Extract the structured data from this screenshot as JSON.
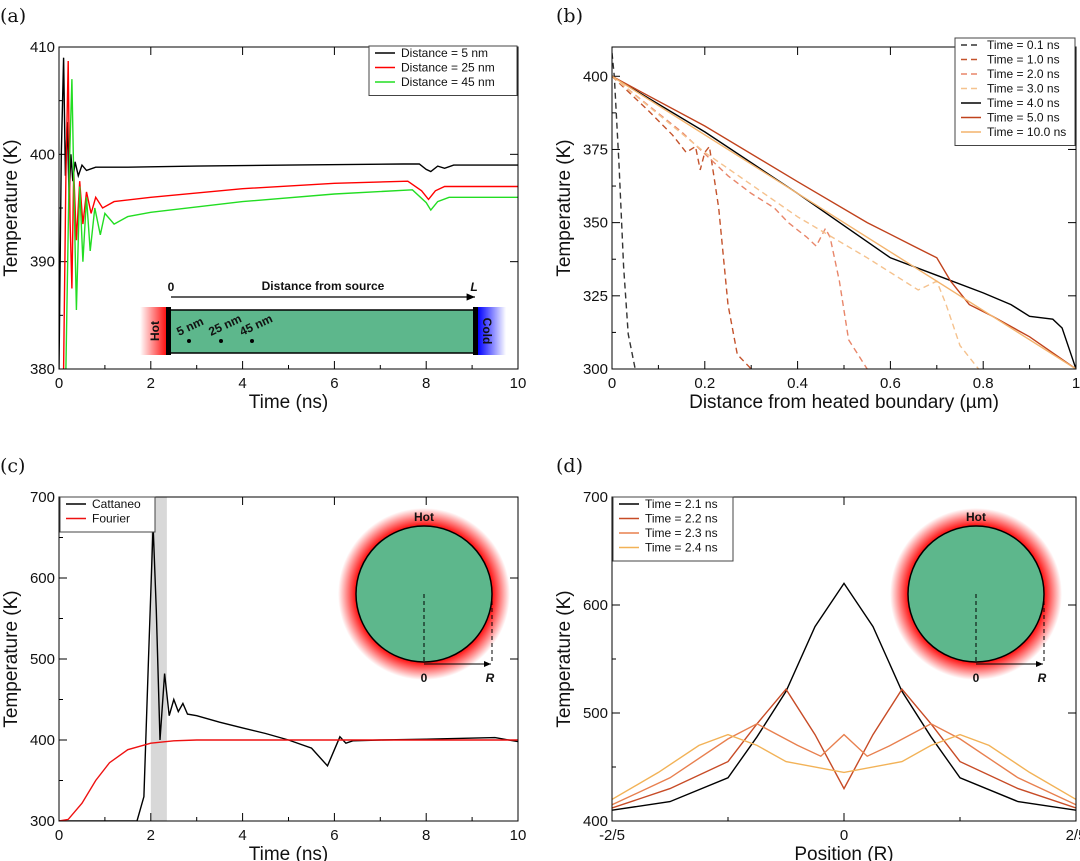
{
  "chart_data": [
    {
      "panel": "(a)",
      "type": "line",
      "xlabel": "Time (ns)",
      "ylabel": "Temperature (K)",
      "xlim": [
        0,
        10
      ],
      "ylim": [
        380,
        410
      ],
      "xticks": [
        0,
        2,
        4,
        6,
        8,
        10
      ],
      "yticks": [
        380,
        390,
        400,
        410
      ],
      "legend_position": "top-right",
      "series": [
        {
          "name": "Distance = 5 nm",
          "color": "#000000",
          "dash": false,
          "points": [
            [
              0,
              380
            ],
            [
              0.05,
              400
            ],
            [
              0.1,
              409
            ],
            [
              0.14,
              398
            ],
            [
              0.18,
              403
            ],
            [
              0.22,
              396
            ],
            [
              0.26,
              400
            ],
            [
              0.3,
              397.5
            ],
            [
              0.35,
              399.3
            ],
            [
              0.42,
              398
            ],
            [
              0.5,
              399
            ],
            [
              0.6,
              398.5
            ],
            [
              0.8,
              398.8
            ],
            [
              1.5,
              398.8
            ],
            [
              3,
              398.9
            ],
            [
              5,
              399
            ],
            [
              7.5,
              399.1
            ],
            [
              7.85,
              399.1
            ],
            [
              8.0,
              398.6
            ],
            [
              8.1,
              398.4
            ],
            [
              8.25,
              398.9
            ],
            [
              8.4,
              398.7
            ],
            [
              8.6,
              399.0
            ],
            [
              9,
              399
            ],
            [
              10,
              399
            ]
          ]
        },
        {
          "name": "Distance = 25 nm",
          "color": "#ff0000",
          "dash": false,
          "points": [
            [
              0.1,
              380
            ],
            [
              0.15,
              398
            ],
            [
              0.2,
              408.7
            ],
            [
              0.24,
              394
            ],
            [
              0.28,
              387.5
            ],
            [
              0.32,
              398.5
            ],
            [
              0.38,
              392
            ],
            [
              0.45,
              397.5
            ],
            [
              0.52,
              393.5
            ],
            [
              0.6,
              396.5
            ],
            [
              0.7,
              394.5
            ],
            [
              0.8,
              396
            ],
            [
              0.95,
              395
            ],
            [
              1.2,
              395.6
            ],
            [
              2,
              396
            ],
            [
              4,
              396.8
            ],
            [
              6,
              397.3
            ],
            [
              7.6,
              397.5
            ],
            [
              7.9,
              396.6
            ],
            [
              8.05,
              395.8
            ],
            [
              8.2,
              396.6
            ],
            [
              8.4,
              397
            ],
            [
              10,
              397
            ]
          ]
        },
        {
          "name": "Distance = 45 nm",
          "color": "#22dd22",
          "dash": false,
          "points": [
            [
              0.15,
              380
            ],
            [
              0.22,
              398
            ],
            [
              0.28,
              407
            ],
            [
              0.33,
              396
            ],
            [
              0.38,
              385.5
            ],
            [
              0.45,
              397
            ],
            [
              0.52,
              390
            ],
            [
              0.6,
              396
            ],
            [
              0.68,
              391
            ],
            [
              0.78,
              395
            ],
            [
              0.9,
              392.5
            ],
            [
              1.0,
              394.5
            ],
            [
              1.2,
              393.5
            ],
            [
              1.5,
              394.2
            ],
            [
              2,
              394.6
            ],
            [
              4,
              395.6
            ],
            [
              6,
              396.3
            ],
            [
              7.7,
              396.7
            ],
            [
              8.0,
              395.5
            ],
            [
              8.1,
              394.8
            ],
            [
              8.25,
              395.6
            ],
            [
              8.5,
              396
            ],
            [
              10,
              396
            ]
          ]
        }
      ],
      "inset": {
        "start_label": "0",
        "end_label": "L",
        "axis_label": "Distance from source",
        "hot_label": "Hot",
        "cold_label": "Cold",
        "probe_labels": [
          "5 nm",
          "25 nm",
          "45 nm"
        ]
      }
    },
    {
      "panel": "(b)",
      "type": "line",
      "xlabel": "Distance from heated boundary (µm)",
      "ylabel": "Temperature (K)",
      "xlim": [
        0,
        1
      ],
      "ylim": [
        300,
        410
      ],
      "xticks": [
        0,
        0.2,
        0.4,
        0.6,
        0.8,
        1
      ],
      "xticklabels": [
        "0",
        "0.2",
        "0.4",
        "0.6",
        "0.8",
        "1"
      ],
      "yticks": [
        300,
        325,
        350,
        375,
        400
      ],
      "legend_position": "top-right",
      "series": [
        {
          "name": "Time = 0.1 ns",
          "color": "#333333",
          "dash": true,
          "points": [
            [
              0,
              408
            ],
            [
              0.005,
              400
            ],
            [
              0.015,
              370
            ],
            [
              0.025,
              335
            ],
            [
              0.035,
              312
            ],
            [
              0.05,
              300
            ]
          ]
        },
        {
          "name": "Time = 1.0 ns",
          "color": "#c4532c",
          "dash": true,
          "points": [
            [
              0,
              400
            ],
            [
              0.08,
              388
            ],
            [
              0.13,
              380
            ],
            [
              0.16,
              374
            ],
            [
              0.18,
              376
            ],
            [
              0.19,
              368
            ],
            [
              0.2,
              374
            ],
            [
              0.21,
              376
            ],
            [
              0.23,
              355
            ],
            [
              0.25,
              322
            ],
            [
              0.27,
              305
            ],
            [
              0.3,
              300
            ]
          ]
        },
        {
          "name": "Time = 2.0 ns",
          "color": "#e8866a",
          "dash": true,
          "points": [
            [
              0,
              400
            ],
            [
              0.15,
              381
            ],
            [
              0.25,
              366
            ],
            [
              0.3,
              360
            ],
            [
              0.35,
              355
            ],
            [
              0.38,
              350
            ],
            [
              0.42,
              345
            ],
            [
              0.44,
              342
            ],
            [
              0.46,
              348
            ],
            [
              0.47,
              345
            ],
            [
              0.49,
              330
            ],
            [
              0.51,
              310
            ],
            [
              0.55,
              300
            ]
          ]
        },
        {
          "name": "Time = 3.0 ns",
          "color": "#f5c28e",
          "dash": true,
          "points": [
            [
              0,
              400
            ],
            [
              0.2,
              374
            ],
            [
              0.4,
              352
            ],
            [
              0.55,
              338
            ],
            [
              0.62,
              331
            ],
            [
              0.66,
              327
            ],
            [
              0.7,
              330
            ],
            [
              0.72,
              322
            ],
            [
              0.75,
              308
            ],
            [
              0.79,
              300
            ]
          ]
        },
        {
          "name": "Time = 4.0 ns",
          "color": "#000000",
          "dash": false,
          "points": [
            [
              0,
              400
            ],
            [
              0.2,
              381
            ],
            [
              0.4,
              360
            ],
            [
              0.6,
              338
            ],
            [
              0.7,
              332
            ],
            [
              0.8,
              326
            ],
            [
              0.86,
              322
            ],
            [
              0.9,
              318
            ],
            [
              0.95,
              317
            ],
            [
              0.97,
              314
            ],
            [
              1,
              300
            ]
          ]
        },
        {
          "name": "Time = 5.0 ns",
          "color": "#c0421c",
          "dash": false,
          "points": [
            [
              0,
              400
            ],
            [
              0.2,
              383
            ],
            [
              0.4,
              364
            ],
            [
              0.55,
              350
            ],
            [
              0.65,
              342
            ],
            [
              0.7,
              338
            ],
            [
              0.73,
              330
            ],
            [
              0.77,
              322
            ],
            [
              0.82,
              318
            ],
            [
              0.9,
              311
            ],
            [
              1,
              300
            ]
          ]
        },
        {
          "name": "Time = 10.0 ns",
          "color": "#f3b36d",
          "dash": false,
          "points": [
            [
              0,
              400
            ],
            [
              1,
              300
            ]
          ]
        }
      ]
    },
    {
      "panel": "(c)",
      "type": "line",
      "xlabel": "Time (ns)",
      "ylabel": "Temperature (K)",
      "xlim": [
        0,
        10
      ],
      "ylim": [
        300,
        700
      ],
      "xticks": [
        0,
        2,
        4,
        6,
        8,
        10
      ],
      "yticks": [
        300,
        400,
        500,
        600,
        700
      ],
      "legend_position": "top-left",
      "shaded_x_range": [
        2.0,
        2.35
      ],
      "series": [
        {
          "name": "Cattaneo",
          "color": "#000000",
          "dash": false,
          "points": [
            [
              0,
              300
            ],
            [
              1.7,
              300
            ],
            [
              1.85,
              330
            ],
            [
              1.95,
              500
            ],
            [
              2.05,
              665
            ],
            [
              2.12,
              560
            ],
            [
              2.2,
              400
            ],
            [
              2.3,
              482
            ],
            [
              2.4,
              430
            ],
            [
              2.5,
              450
            ],
            [
              2.6,
              435
            ],
            [
              2.7,
              445
            ],
            [
              2.8,
              432
            ],
            [
              3,
              430
            ],
            [
              3.5,
              422
            ],
            [
              4,
              415
            ],
            [
              4.5,
              408
            ],
            [
              5,
              400
            ],
            [
              5.5,
              390
            ],
            [
              5.85,
              368
            ],
            [
              6.0,
              388
            ],
            [
              6.12,
              404
            ],
            [
              6.25,
              396
            ],
            [
              6.4,
              399
            ],
            [
              7,
              400
            ],
            [
              8,
              401
            ],
            [
              9.5,
              403
            ],
            [
              10,
              398
            ]
          ]
        },
        {
          "name": "Fourier",
          "color": "#ee1111",
          "dash": false,
          "points": [
            [
              0,
              300
            ],
            [
              0.2,
              302
            ],
            [
              0.5,
              322
            ],
            [
              0.8,
              350
            ],
            [
              1.1,
              372
            ],
            [
              1.5,
              388
            ],
            [
              2,
              396
            ],
            [
              2.5,
              399
            ],
            [
              3,
              400
            ],
            [
              10,
              400
            ]
          ]
        }
      ],
      "inset": {
        "hot_label": "Hot",
        "origin_label": "0",
        "radius_label": "R"
      }
    },
    {
      "panel": "(d)",
      "type": "line",
      "xlabel": "Position (R)",
      "ylabel": "Temperature (K)",
      "xlim": [
        -0.4,
        0.4
      ],
      "ylim": [
        400,
        700
      ],
      "xticks": [
        -0.4,
        0,
        0.4
      ],
      "xticklabels": [
        "-2/5",
        "0",
        "2/5"
      ],
      "yticks": [
        400,
        500,
        600,
        700
      ],
      "legend_position": "top-left",
      "series": [
        {
          "name": "Time = 2.1 ns",
          "color": "#000000",
          "dash": false,
          "points": [
            [
              -0.4,
              410
            ],
            [
              -0.3,
              418
            ],
            [
              -0.2,
              440
            ],
            [
              -0.15,
              478
            ],
            [
              -0.1,
              520
            ],
            [
              -0.05,
              580
            ],
            [
              0,
              620
            ],
            [
              0.05,
              580
            ],
            [
              0.1,
              520
            ],
            [
              0.15,
              478
            ],
            [
              0.2,
              440
            ],
            [
              0.3,
              418
            ],
            [
              0.4,
              410
            ]
          ]
        },
        {
          "name": "Time = 2.2 ns",
          "color": "#c74b26",
          "dash": false,
          "points": [
            [
              -0.4,
              412
            ],
            [
              -0.3,
              430
            ],
            [
              -0.2,
              455
            ],
            [
              -0.15,
              490
            ],
            [
              -0.1,
              522
            ],
            [
              -0.05,
              480
            ],
            [
              0,
              430
            ],
            [
              0.05,
              480
            ],
            [
              0.1,
              522
            ],
            [
              0.15,
              490
            ],
            [
              0.2,
              455
            ],
            [
              0.3,
              430
            ],
            [
              0.4,
              412
            ]
          ]
        },
        {
          "name": "Time = 2.3 ns",
          "color": "#e8804f",
          "dash": false,
          "points": [
            [
              -0.4,
              415
            ],
            [
              -0.3,
              440
            ],
            [
              -0.2,
              476
            ],
            [
              -0.15,
              490
            ],
            [
              -0.08,
              470
            ],
            [
              -0.04,
              460
            ],
            [
              0,
              480
            ],
            [
              0.04,
              460
            ],
            [
              0.08,
              470
            ],
            [
              0.15,
              490
            ],
            [
              0.2,
              476
            ],
            [
              0.3,
              440
            ],
            [
              0.4,
              415
            ]
          ]
        },
        {
          "name": "Time = 2.4 ns",
          "color": "#f2b257",
          "dash": false,
          "points": [
            [
              -0.4,
              420
            ],
            [
              -0.32,
              445
            ],
            [
              -0.25,
              470
            ],
            [
              -0.2,
              480
            ],
            [
              -0.15,
              470
            ],
            [
              -0.1,
              455
            ],
            [
              0,
              445
            ],
            [
              0.1,
              455
            ],
            [
              0.15,
              470
            ],
            [
              0.2,
              480
            ],
            [
              0.25,
              470
            ],
            [
              0.32,
              445
            ],
            [
              0.4,
              420
            ]
          ]
        }
      ],
      "inset": {
        "hot_label": "Hot",
        "origin_label": "0",
        "radius_label": "R"
      }
    }
  ]
}
